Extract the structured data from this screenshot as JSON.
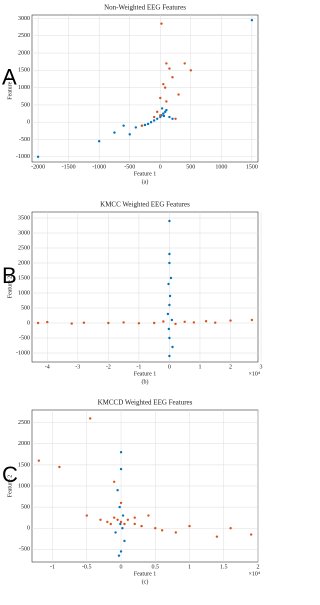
{
  "chart_data": [
    {
      "type": "scatter",
      "panel": "A",
      "title": "Non-Weighted EEG Features",
      "xlabel": "Feature 1",
      "ylabel": "Feature 2",
      "caption": "(a)",
      "xlim": [
        -2100,
        1600
      ],
      "ylim": [
        -1150,
        3100
      ],
      "grid": true,
      "xticks": [
        -2000,
        -1500,
        -1000,
        -500,
        0,
        500,
        1000,
        1500
      ],
      "yticks": [
        -1000,
        -500,
        0,
        500,
        1000,
        1500,
        2000,
        2500,
        3000
      ],
      "series": [
        {
          "color": "#0072bd",
          "x": [
            -2000,
            -1000,
            -750,
            -600,
            -500,
            -400,
            -300,
            -250,
            -200,
            -150,
            -100,
            -50,
            0,
            20,
            30,
            50,
            60,
            80,
            100,
            150,
            200,
            1500
          ],
          "values": [
            -1000,
            -550,
            -300,
            -100,
            -350,
            -150,
            -100,
            -80,
            -50,
            0,
            50,
            100,
            150,
            200,
            400,
            250,
            180,
            300,
            350,
            150,
            100,
            2950
          ]
        },
        {
          "color": "#d95319",
          "x": [
            20,
            50,
            100,
            150,
            200,
            300,
            400,
            500,
            100,
            -50,
            -100,
            0,
            250,
            -300,
            0,
            80
          ],
          "values": [
            2850,
            1100,
            1700,
            1550,
            1300,
            800,
            1700,
            1500,
            600,
            300,
            150,
            200,
            100,
            -100,
            700,
            1000
          ]
        }
      ]
    },
    {
      "type": "scatter",
      "panel": "B",
      "title": "KMCC Weighted EEG Features",
      "xlabel": "Feature 1",
      "ylabel": "Feature 2",
      "caption": "(b)",
      "x_multiplier": "×10⁴",
      "xlim": [
        -45000,
        29000
      ],
      "ylim": [
        -1300,
        3700
      ],
      "grid": true,
      "xticks": [
        {
          "value": -40000,
          "label": "-4"
        },
        {
          "value": -30000,
          "label": "-3"
        },
        {
          "value": -20000,
          "label": "-2"
        },
        {
          "value": -10000,
          "label": "-1"
        },
        0,
        {
          "value": 10000,
          "label": "1"
        },
        {
          "value": 20000,
          "label": "2"
        },
        {
          "value": 30000,
          "label": "3"
        }
      ],
      "yticks": [
        -1000,
        -500,
        0,
        500,
        1000,
        1500,
        2000,
        2500,
        3000,
        3500
      ],
      "series": [
        {
          "color": "#d95319",
          "x": [
            -43000,
            -40000,
            -32000,
            -28000,
            -20000,
            -15000,
            -10000,
            -5000,
            -2000,
            2000,
            5000,
            8000,
            12000,
            15000,
            20000,
            27000
          ],
          "values": [
            0,
            30,
            -20,
            10,
            0,
            20,
            -10,
            0,
            50,
            -30,
            40,
            20,
            60,
            10,
            80,
            100
          ]
        },
        {
          "color": "#0072bd",
          "x": [
            0,
            0,
            0,
            500,
            -300,
            200,
            0,
            -500,
            800,
            -200,
            0,
            1000,
            0
          ],
          "values": [
            3400,
            2300,
            2000,
            1500,
            1300,
            900,
            600,
            300,
            100,
            -200,
            -500,
            -800,
            -1100
          ]
        }
      ]
    },
    {
      "type": "scatter",
      "panel": "C",
      "title": "KMCCD Weighted EEG Features",
      "xlabel": "Feature 1",
      "ylabel": "Feature 2",
      "caption": "(c)",
      "x_multiplier": "×10⁴",
      "xlim": [
        -13000,
        20000
      ],
      "ylim": [
        -800,
        2800
      ],
      "grid": true,
      "xticks": [
        {
          "value": -10000,
          "label": "-1"
        },
        {
          "value": -5000,
          "label": "-0.5"
        },
        0,
        {
          "value": 5000,
          "label": "0.5"
        },
        {
          "value": 10000,
          "label": "1"
        },
        {
          "value": 15000,
          "label": "1.5"
        },
        {
          "value": 20000,
          "label": "2"
        }
      ],
      "yticks": [
        -500,
        0,
        500,
        1000,
        1500,
        2000,
        2500
      ],
      "series": [
        {
          "color": "#d95319",
          "x": [
            -12000,
            -9000,
            -5000,
            -3000,
            -2000,
            -1500,
            -1000,
            -500,
            0,
            500,
            1000,
            2000,
            3000,
            4000,
            5000,
            6000,
            8000,
            10000,
            14000,
            16000,
            19000,
            -4500,
            -1000,
            0,
            2000
          ],
          "values": [
            1600,
            1450,
            300,
            200,
            150,
            100,
            250,
            200,
            150,
            100,
            200,
            100,
            50,
            300,
            0,
            -50,
            -100,
            50,
            -200,
            0,
            -150,
            2600,
            1100,
            600,
            250
          ]
        },
        {
          "color": "#0072bd",
          "x": [
            0,
            0,
            -500,
            -200,
            300,
            -100,
            200,
            -800,
            500,
            0,
            -300
          ],
          "values": [
            1800,
            1400,
            900,
            500,
            300,
            100,
            0,
            -100,
            -300,
            -550,
            -650
          ]
        }
      ]
    }
  ]
}
